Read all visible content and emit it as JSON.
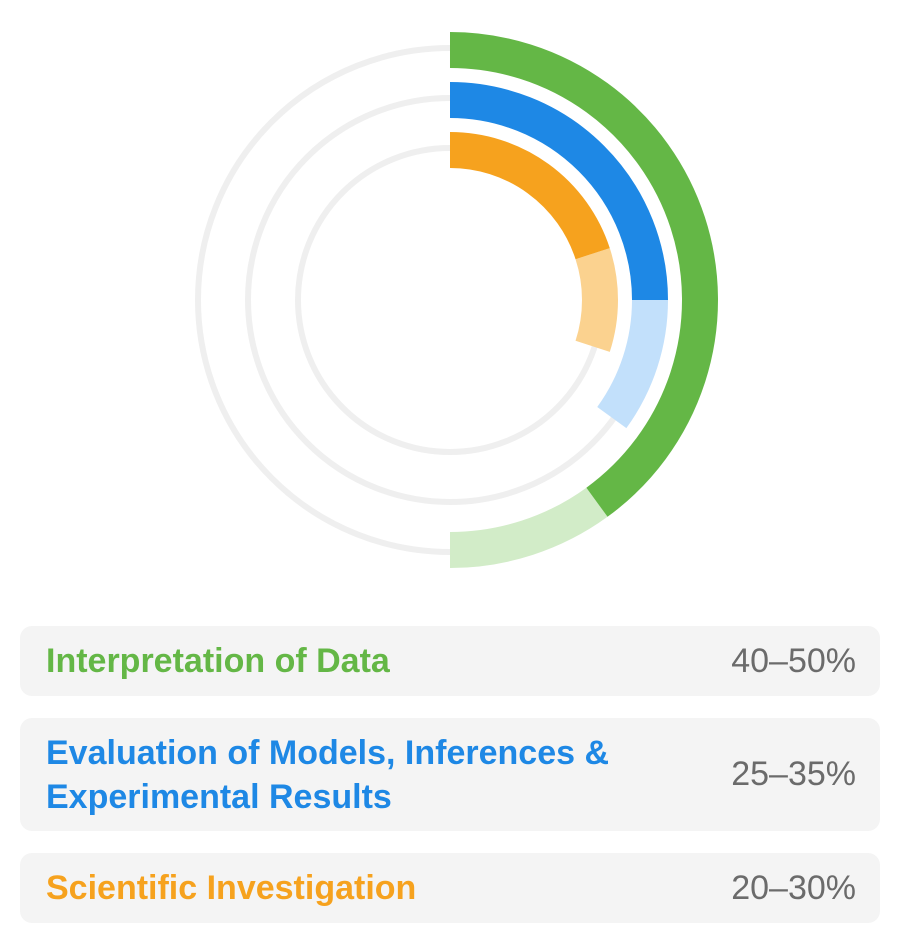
{
  "chart_data": {
    "type": "pie",
    "subtype": "radial-range",
    "series": [
      {
        "name": "Interpretation of Data",
        "range": [
          40,
          50
        ],
        "min": 40,
        "max": 50,
        "value_text": "40–50%",
        "color": "#64b746",
        "light_color": "#d2ecc8"
      },
      {
        "name": "Evaluation of Models, Inferences & Experimental Results",
        "range": [
          25,
          35
        ],
        "min": 25,
        "max": 35,
        "value_text": "25–35%",
        "color": "#1e88e5",
        "light_color": "#c2e0fb"
      },
      {
        "name": "Scientific Investigation",
        "range": [
          20,
          30
        ],
        "min": 20,
        "max": 30,
        "value_text": "20–30%",
        "color": "#f6a21e",
        "light_color": "#fbd28f"
      }
    ],
    "track_color": "#efefef",
    "legend_position": "bottom"
  }
}
